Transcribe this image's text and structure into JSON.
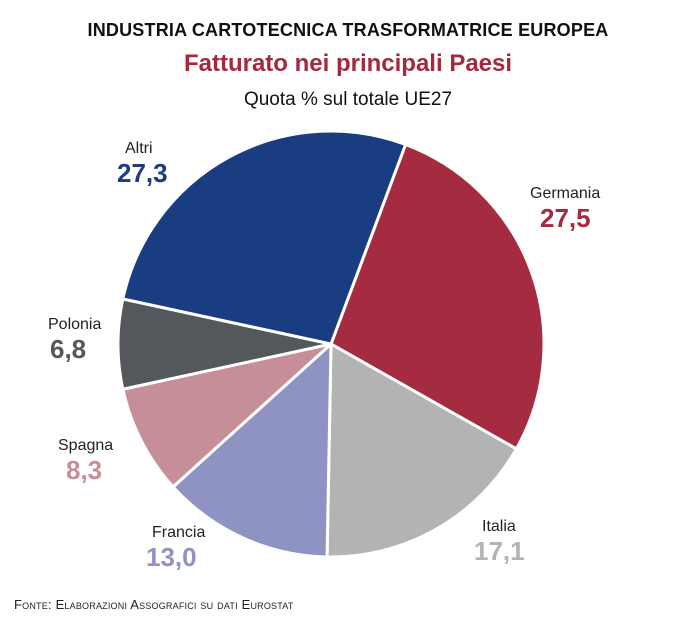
{
  "header": {
    "title": "INDUSTRIA CARTOTECNICA TRASFORMATRICE EUROPEA",
    "subtitle": "Fatturato nei principali Paesi",
    "caption": "Quota % sul totale UE27"
  },
  "chart_data": {
    "type": "pie",
    "title": "Fatturato nei principali Paesi",
    "unit": "Quota % sul totale UE27",
    "labels": [
      "Germania",
      "Italia",
      "Francia",
      "Spagna",
      "Polonia",
      "Altri"
    ],
    "values": [
      27.5,
      17.1,
      13.0,
      8.3,
      6.8,
      27.3
    ],
    "display_values": [
      "27,5",
      "17,1",
      "13,0",
      "8,3",
      "6,8",
      "27,3"
    ],
    "colors": [
      "#a52b40",
      "#b3b3b3",
      "#8f93c3",
      "#c68f98",
      "#54585d",
      "#1a3d82"
    ]
  },
  "labels": {
    "germania": {
      "name": "Germania",
      "value": "27,5"
    },
    "italia": {
      "name": "Italia",
      "value": "17,1"
    },
    "francia": {
      "name": "Francia",
      "value": "13,0"
    },
    "spagna": {
      "name": "Spagna",
      "value": "8,3"
    },
    "polonia": {
      "name": "Polonia",
      "value": "6,8"
    },
    "altri": {
      "name": "Altri",
      "value": "27,3"
    }
  },
  "value_colors": {
    "germania": "#a52b40",
    "italia": "#b3b3b3",
    "francia": "#8f93c3",
    "spagna": "#c68f98",
    "polonia": "#54585d",
    "altri": "#1a3d82"
  },
  "footer": {
    "source": "Fonte: Elaborazioni Assografici su dati Eurostat"
  }
}
